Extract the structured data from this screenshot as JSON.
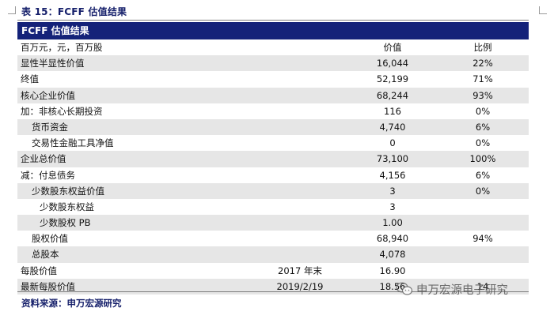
{
  "caption": "表 15：FCFF 估值结果",
  "header_title": "FCFF 估值结果",
  "rows": [
    {
      "label": "百万元，元，百万股",
      "note": "",
      "value": "价值",
      "ratio": "比例",
      "indent": 0,
      "shaded": false
    },
    {
      "label": "显性半显性价值",
      "note": "",
      "value": "16,044",
      "ratio": "22%",
      "indent": 0,
      "shaded": true
    },
    {
      "label": "终值",
      "note": "",
      "value": "52,199",
      "ratio": "71%",
      "indent": 0,
      "shaded": false
    },
    {
      "label": "核心企业价值",
      "note": "",
      "value": "68,244",
      "ratio": "93%",
      "indent": 0,
      "shaded": true
    },
    {
      "label": "加：非核心长期投资",
      "note": "",
      "value": "116",
      "ratio": "0%",
      "indent": 0,
      "shaded": false
    },
    {
      "label": "货币资金",
      "note": "",
      "value": "4,740",
      "ratio": "6%",
      "indent": 1,
      "shaded": true
    },
    {
      "label": "交易性金融工具净值",
      "note": "",
      "value": "0",
      "ratio": "0%",
      "indent": 1,
      "shaded": false
    },
    {
      "label": "企业总价值",
      "note": "",
      "value": "73,100",
      "ratio": "100%",
      "indent": 0,
      "shaded": true
    },
    {
      "label": "减：付息债务",
      "note": "",
      "value": "4,156",
      "ratio": "6%",
      "indent": 0,
      "shaded": false
    },
    {
      "label": "少数股东权益价值",
      "note": "",
      "value": "3",
      "ratio": "0%",
      "indent": 1,
      "shaded": true
    },
    {
      "label": "少数股东权益",
      "note": "",
      "value": "3",
      "ratio": "",
      "indent": 2,
      "shaded": false
    },
    {
      "label": "少数股权 PB",
      "note": "",
      "value": "1.00",
      "ratio": "",
      "indent": 2,
      "shaded": true
    },
    {
      "label": "股权价值",
      "note": "",
      "value": "68,940",
      "ratio": "94%",
      "indent": 1,
      "shaded": false
    },
    {
      "label": "总股本",
      "note": "",
      "value": "4,078",
      "ratio": "",
      "indent": 1,
      "shaded": true
    },
    {
      "label": "每股价值",
      "note": "2017 年末",
      "value": "16.90",
      "ratio": "",
      "indent": 0,
      "shaded": false
    },
    {
      "label": "最新每股价值",
      "note": "2019/2/19",
      "value": "18.56",
      "ratio": "14",
      "indent": 0,
      "shaded": true
    }
  ],
  "source": "资料来源：申万宏源研究",
  "watermark": "申万宏源电子研究",
  "colors": {
    "header_bg": "#142279",
    "title_text": "#16206b",
    "row_shade": "#e6e6e6"
  }
}
